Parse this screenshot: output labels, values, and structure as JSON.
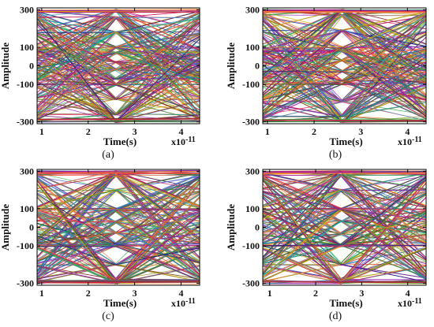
{
  "chart_data": [
    {
      "type": "line",
      "panel_label": "(a)",
      "xlabel": "Time(s)",
      "ylabel": "Amplitude",
      "x_exponent_label": "x10",
      "x_exponent_power": "-11",
      "xlim": [
        0.9,
        4.4
      ],
      "ylim": [
        -310,
        310
      ],
      "xticks": [
        1,
        2,
        3,
        4
      ],
      "xtick_labels": [
        "1",
        "2",
        "3",
        "4"
      ],
      "yticks": [
        300,
        100,
        0,
        -100,
        -300
      ],
      "ytick_labels": [
        "300",
        "100",
        "0",
        "-100",
        "-300"
      ],
      "eye_center_x": 2.6,
      "levels": [
        -300,
        -260,
        -180,
        -100,
        -70,
        -20,
        20,
        70,
        100,
        180,
        260,
        300
      ],
      "grid": false
    },
    {
      "type": "line",
      "panel_label": "(b)",
      "xlabel": "Time(s)",
      "ylabel": "Amplitude",
      "x_exponent_label": "x10",
      "x_exponent_power": "-11",
      "xlim": [
        0.9,
        4.4
      ],
      "ylim": [
        -310,
        310
      ],
      "xticks": [
        1,
        2,
        3,
        4
      ],
      "xtick_labels": [
        "1",
        "2",
        "3",
        "4"
      ],
      "yticks": [
        300,
        100,
        0,
        -100,
        -300
      ],
      "ytick_labels": [
        "300",
        "100",
        "0",
        "-100",
        "-300"
      ],
      "eye_center_x": 2.6,
      "levels": [
        -300,
        -270,
        -190,
        -100,
        -80,
        -30,
        30,
        80,
        100,
        190,
        270,
        300
      ],
      "grid": false
    },
    {
      "type": "line",
      "panel_label": "(c)",
      "xlabel": "Time(s)",
      "ylabel": "Amplitude",
      "x_exponent_label": "x10",
      "x_exponent_power": "-11",
      "xlim": [
        0.9,
        4.4
      ],
      "ylim": [
        -310,
        310
      ],
      "xticks": [
        1,
        2,
        3,
        4
      ],
      "xtick_labels": [
        "1",
        "2",
        "3",
        "4"
      ],
      "yticks": [
        300,
        100,
        0,
        -100,
        -300
      ],
      "ytick_labels": [
        "300",
        "100",
        "0",
        "-100",
        "-300"
      ],
      "eye_center_x": 2.6,
      "levels": [
        -300,
        -280,
        -200,
        -100,
        -90,
        -30,
        30,
        90,
        100,
        200,
        280,
        300
      ],
      "grid": false
    },
    {
      "type": "line",
      "panel_label": "(d)",
      "xlabel": "Time(s)",
      "ylabel": "Amplitude",
      "x_exponent_label": "x10",
      "x_exponent_power": "-11",
      "xlim": [
        0.85,
        4.4
      ],
      "ylim": [
        -310,
        310
      ],
      "xticks": [
        1,
        2,
        3,
        4
      ],
      "xtick_labels": [
        "1",
        "2",
        "3",
        "4"
      ],
      "yticks": [
        300,
        100,
        0,
        -100,
        -300
      ],
      "ytick_labels": [
        "300",
        "100",
        "0",
        "-100",
        "-300"
      ],
      "eye_center_x": 2.55,
      "levels": [
        -300,
        -280,
        -200,
        -100,
        -95,
        -35,
        35,
        95,
        100,
        200,
        280,
        300
      ],
      "grid": false
    }
  ],
  "colors": [
    "#e6194b",
    "#3cb44b",
    "#4363d8",
    "#f58231",
    "#911eb4",
    "#46a0c8",
    "#d4b800",
    "#7a3b1f",
    "#00a0a0",
    "#c2185b",
    "#2e7d32",
    "#1a237e",
    "#ff7043",
    "#6d4c41",
    "#9e9d24",
    "#8e24aa"
  ]
}
